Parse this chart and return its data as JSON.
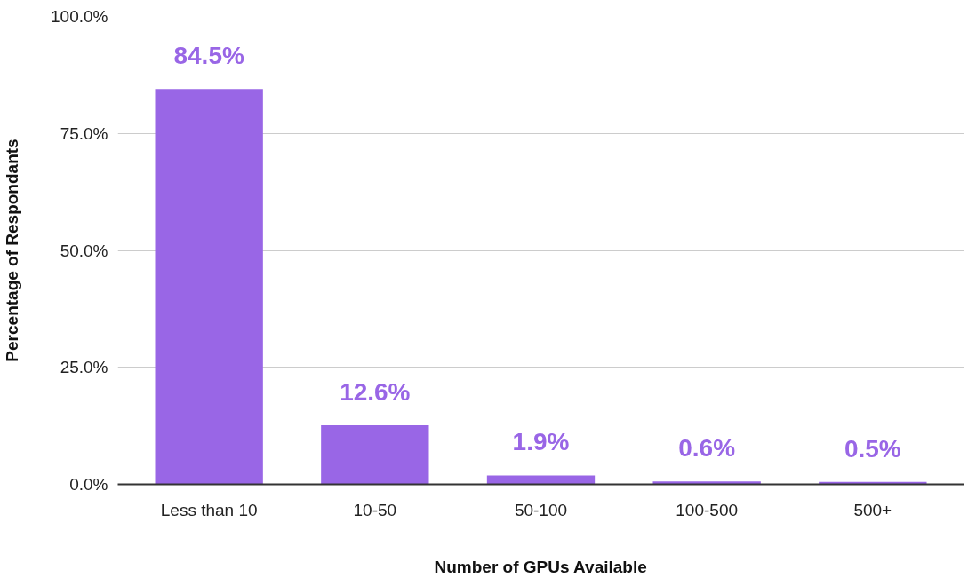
{
  "chart_data": {
    "type": "bar",
    "xlabel": "Number of GPUs Available",
    "ylabel": "Percentage of Respondants",
    "categories": [
      "Less than 10",
      "10-50",
      "50-100",
      "100-500",
      "500+"
    ],
    "values": [
      84.5,
      12.6,
      1.9,
      0.6,
      0.5
    ],
    "value_labels": [
      "84.5%",
      "12.6%",
      "1.9%",
      "0.6%",
      "0.5%"
    ],
    "color": "#9966e6",
    "ylim": [
      0,
      100
    ],
    "yticks": [
      {
        "value": 0,
        "label": "0.0%"
      },
      {
        "value": 25,
        "label": "25.0%"
      },
      {
        "value": 50,
        "label": "50.0%"
      },
      {
        "value": 75,
        "label": "75.0%"
      },
      {
        "value": 100,
        "label": "100.0%"
      }
    ],
    "grid": "y"
  }
}
